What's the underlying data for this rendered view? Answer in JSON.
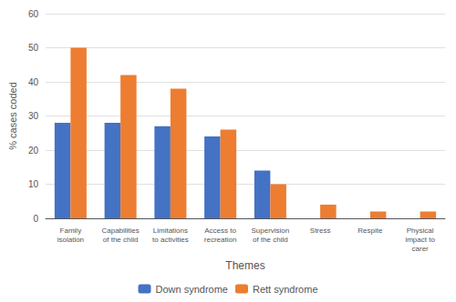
{
  "chart_data": {
    "type": "bar",
    "categories": [
      "Family\nisolation",
      "Capabilities\nof the child",
      "Limitations\nto activities",
      "Access to\nrecreation",
      "Supervision\nof the child",
      "Stress",
      "Respite",
      "Physical\nimpact to\ncarer"
    ],
    "series": [
      {
        "name": "Down syndrome",
        "color": "#4472C4",
        "values": [
          28,
          28,
          27,
          24,
          14,
          0,
          0,
          0
        ]
      },
      {
        "name": "Rett syndrome",
        "color": "#ED7D31",
        "values": [
          50,
          42,
          38,
          26,
          10,
          4,
          2,
          2
        ]
      }
    ],
    "xlabel": "Themes",
    "ylabel": "% cases coded",
    "ylim": [
      0,
      60
    ],
    "yticks": [
      0,
      10,
      20,
      30,
      40,
      50,
      60
    ],
    "grid": true,
    "legend": "bottom"
  }
}
